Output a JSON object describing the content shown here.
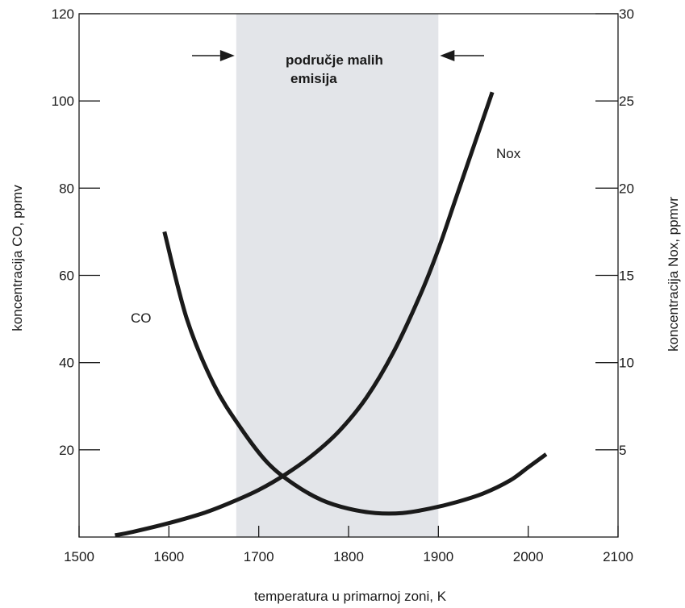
{
  "chart_data": {
    "type": "line",
    "title": "",
    "xlabel": "temperatura u primarnoj zoni, K",
    "ylabel_left": "koncentracija CO, ppmv",
    "ylabel_right": "koncentracija Nox, ppmvr",
    "xlim": [
      1500,
      2100
    ],
    "ylim_left": [
      0,
      120
    ],
    "ylim_right": [
      0,
      30
    ],
    "x_ticks": [
      1500,
      1600,
      1700,
      1800,
      1900,
      2000,
      2100
    ],
    "y_left_ticks": [
      20,
      40,
      60,
      80,
      100,
      120
    ],
    "y_right_ticks": [
      5,
      10,
      15,
      20,
      25,
      30
    ],
    "grid": false,
    "legend": "none",
    "shaded_region": {
      "x": [
        1675,
        1900
      ],
      "label_line1": "područje malih",
      "label_line2": "emisija",
      "color": "#e3e5e9"
    },
    "series": [
      {
        "name": "CO",
        "axis": "left",
        "color": "#1a1a1a",
        "x": [
          1595,
          1620,
          1650,
          1680,
          1710,
          1740,
          1770,
          1800,
          1830,
          1860,
          1890,
          1920,
          1950,
          1980,
          2000,
          2020
        ],
        "y": [
          70,
          50,
          35,
          25,
          17,
          12,
          8.5,
          6.5,
          5.5,
          5.5,
          6.5,
          8,
          10,
          13,
          16,
          19
        ]
      },
      {
        "name": "Nox",
        "axis": "right",
        "color": "#1a1a1a",
        "x": [
          1540,
          1560,
          1600,
          1640,
          1670,
          1700,
          1730,
          1760,
          1790,
          1820,
          1850,
          1880,
          1900,
          1920,
          1940,
          1960
        ],
        "y": [
          0.1,
          0.3,
          0.8,
          1.4,
          2,
          2.7,
          3.6,
          4.7,
          6.1,
          8,
          10.6,
          13.9,
          16.5,
          19.5,
          22.5,
          25.5
        ]
      }
    ]
  }
}
